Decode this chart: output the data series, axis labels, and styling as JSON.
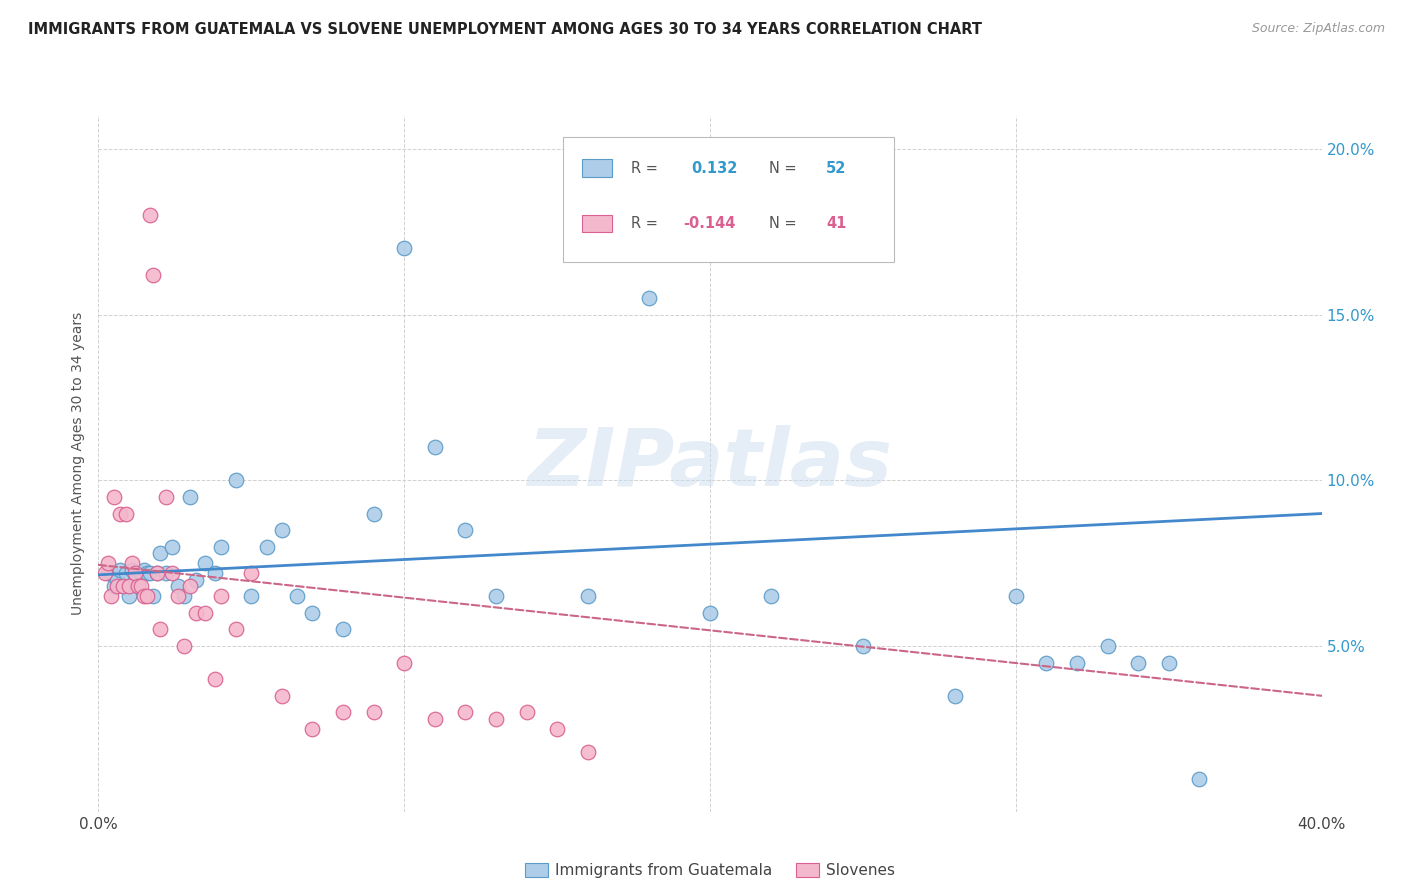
{
  "title": "IMMIGRANTS FROM GUATEMALA VS SLOVENE UNEMPLOYMENT AMONG AGES 30 TO 34 YEARS CORRELATION CHART",
  "source": "Source: ZipAtlas.com",
  "ylabel": "Unemployment Among Ages 30 to 34 years",
  "legend1_label": "Immigrants from Guatemala",
  "legend2_label": "Slovenes",
  "R1": "0.132",
  "N1": "52",
  "R2": "-0.144",
  "N2": "41",
  "blue_color": "#aecde8",
  "blue_edge": "#5b9bc8",
  "pink_color": "#f4b8cc",
  "pink_edge": "#d96090",
  "line_blue": "#4488cc",
  "line_pink": "#cc6688",
  "watermark": "ZIPatlas",
  "xlim": [
    0.0,
    0.4
  ],
  "ylim": [
    0.0,
    0.21
  ],
  "blue_scatter_x": [
    0.003,
    0.004,
    0.005,
    0.006,
    0.007,
    0.008,
    0.009,
    0.01,
    0.011,
    0.012,
    0.013,
    0.014,
    0.015,
    0.016,
    0.017,
    0.018,
    0.019,
    0.02,
    0.022,
    0.024,
    0.026,
    0.028,
    0.03,
    0.032,
    0.035,
    0.038,
    0.04,
    0.045,
    0.05,
    0.055,
    0.06,
    0.065,
    0.07,
    0.08,
    0.09,
    0.1,
    0.11,
    0.12,
    0.13,
    0.16,
    0.18,
    0.2,
    0.22,
    0.25,
    0.28,
    0.3,
    0.31,
    0.32,
    0.33,
    0.34,
    0.35,
    0.36
  ],
  "blue_scatter_y": [
    0.072,
    0.072,
    0.068,
    0.07,
    0.073,
    0.068,
    0.072,
    0.065,
    0.073,
    0.07,
    0.068,
    0.072,
    0.073,
    0.072,
    0.072,
    0.065,
    0.072,
    0.078,
    0.072,
    0.08,
    0.068,
    0.065,
    0.095,
    0.07,
    0.075,
    0.072,
    0.08,
    0.1,
    0.065,
    0.08,
    0.085,
    0.065,
    0.06,
    0.055,
    0.09,
    0.17,
    0.11,
    0.085,
    0.065,
    0.065,
    0.155,
    0.06,
    0.065,
    0.05,
    0.035,
    0.065,
    0.045,
    0.045,
    0.05,
    0.045,
    0.045,
    0.01
  ],
  "pink_scatter_x": [
    0.002,
    0.003,
    0.004,
    0.005,
    0.006,
    0.007,
    0.008,
    0.009,
    0.01,
    0.011,
    0.012,
    0.013,
    0.014,
    0.015,
    0.016,
    0.017,
    0.018,
    0.019,
    0.02,
    0.022,
    0.024,
    0.026,
    0.028,
    0.03,
    0.032,
    0.035,
    0.038,
    0.04,
    0.045,
    0.05,
    0.06,
    0.07,
    0.08,
    0.09,
    0.1,
    0.11,
    0.12,
    0.13,
    0.14,
    0.15,
    0.16
  ],
  "pink_scatter_y": [
    0.072,
    0.075,
    0.065,
    0.095,
    0.068,
    0.09,
    0.068,
    0.09,
    0.068,
    0.075,
    0.072,
    0.068,
    0.068,
    0.065,
    0.065,
    0.18,
    0.162,
    0.072,
    0.055,
    0.095,
    0.072,
    0.065,
    0.05,
    0.068,
    0.06,
    0.06,
    0.04,
    0.065,
    0.055,
    0.072,
    0.035,
    0.025,
    0.03,
    0.03,
    0.045,
    0.028,
    0.03,
    0.028,
    0.03,
    0.025,
    0.018
  ],
  "blue_line_x0": 0.0,
  "blue_line_x1": 0.4,
  "blue_line_y0": 0.0715,
  "blue_line_y1": 0.09,
  "pink_line_x0": 0.0,
  "pink_line_x1": 0.4,
  "pink_line_y0": 0.0745,
  "pink_line_y1": 0.035
}
